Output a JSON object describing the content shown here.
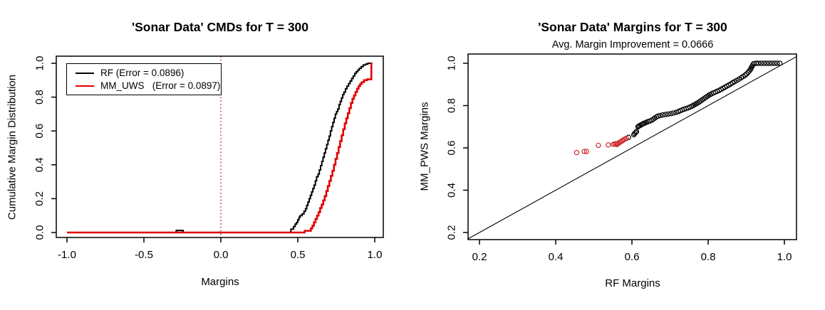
{
  "figure": {
    "background": "#ffffff",
    "description": "Two R base-graphics plots comparing RF and margin-maximizing ensemble margins on the Sonar dataset"
  },
  "chart_data": [
    {
      "type": "line",
      "title": "'Sonar Data' CMDs for T = 300",
      "xlabel": "Margins",
      "ylabel": "Cumulative Margin Distribution",
      "xlim": [
        -1.08,
        1.08
      ],
      "ylim": [
        -0.04,
        1.04
      ],
      "xtick_values": [
        -1.0,
        -0.5,
        0.0,
        0.5,
        1.0
      ],
      "xtick_labels": [
        "-1.0",
        "-0.5",
        "0.0",
        "0.5",
        "1.0"
      ],
      "ytick_values": [
        0.0,
        0.2,
        0.4,
        0.6,
        0.8,
        1.0
      ],
      "ytick_labels": [
        "0.0",
        "0.2",
        "0.4",
        "0.6",
        "0.8",
        "1.0"
      ],
      "grid": false,
      "reference_line": {
        "x": 0.0,
        "style": "dotted",
        "color": "#a03028",
        "width": 1.4
      },
      "legend": {
        "position": "top-left",
        "entries": [
          {
            "label": "RF (Error = 0.0896)",
            "color": "#000000"
          },
          {
            "label": "MM_UWS   (Error = 0.0897)",
            "color": "#e00000"
          }
        ]
      },
      "series": [
        {
          "name": "RF",
          "color": "#000000",
          "width": 2,
          "step": true,
          "points": [
            [
              -1.0,
              0.0
            ],
            [
              -0.29,
              0.012
            ],
            [
              -0.245,
              0.0
            ],
            [
              0.455,
              0.02
            ],
            [
              0.472,
              0.035
            ],
            [
              0.483,
              0.05
            ],
            [
              0.492,
              0.06
            ],
            [
              0.5,
              0.075
            ],
            [
              0.508,
              0.09
            ],
            [
              0.515,
              0.1
            ],
            [
              0.528,
              0.11
            ],
            [
              0.54,
              0.125
            ],
            [
              0.55,
              0.14
            ],
            [
              0.558,
              0.16
            ],
            [
              0.566,
              0.18
            ],
            [
              0.574,
              0.2
            ],
            [
              0.582,
              0.22
            ],
            [
              0.59,
              0.24
            ],
            [
              0.598,
              0.26
            ],
            [
              0.606,
              0.28
            ],
            [
              0.614,
              0.305
            ],
            [
              0.622,
              0.33
            ],
            [
              0.632,
              0.345
            ],
            [
              0.64,
              0.37
            ],
            [
              0.648,
              0.395
            ],
            [
              0.656,
              0.42
            ],
            [
              0.664,
              0.445
            ],
            [
              0.672,
              0.47
            ],
            [
              0.68,
              0.495
            ],
            [
              0.688,
              0.52
            ],
            [
              0.696,
              0.545
            ],
            [
              0.704,
              0.57
            ],
            [
              0.712,
              0.6
            ],
            [
              0.72,
              0.625
            ],
            [
              0.728,
              0.65
            ],
            [
              0.736,
              0.675
            ],
            [
              0.744,
              0.7
            ],
            [
              0.752,
              0.715
            ],
            [
              0.76,
              0.73
            ],
            [
              0.768,
              0.755
            ],
            [
              0.776,
              0.775
            ],
            [
              0.784,
              0.795
            ],
            [
              0.792,
              0.815
            ],
            [
              0.8,
              0.83
            ],
            [
              0.81,
              0.85
            ],
            [
              0.82,
              0.865
            ],
            [
              0.83,
              0.88
            ],
            [
              0.84,
              0.895
            ],
            [
              0.85,
              0.91
            ],
            [
              0.86,
              0.925
            ],
            [
              0.87,
              0.94
            ],
            [
              0.88,
              0.95
            ],
            [
              0.89,
              0.96
            ],
            [
              0.9,
              0.97
            ],
            [
              0.912,
              0.98
            ],
            [
              0.925,
              0.99
            ],
            [
              0.94,
              0.995
            ],
            [
              0.955,
              1.0
            ],
            [
              0.981,
              1.0
            ]
          ]
        },
        {
          "name": "MM_UWS",
          "color": "#e00000",
          "width": 2.6,
          "step": true,
          "points": [
            [
              -1.0,
              0.0
            ],
            [
              0.545,
              0.01
            ],
            [
              0.575,
              0.01
            ],
            [
              0.585,
              0.025
            ],
            [
              0.595,
              0.04
            ],
            [
              0.605,
              0.06
            ],
            [
              0.615,
              0.08
            ],
            [
              0.625,
              0.1
            ],
            [
              0.635,
              0.12
            ],
            [
              0.645,
              0.145
            ],
            [
              0.655,
              0.165
            ],
            [
              0.665,
              0.19
            ],
            [
              0.675,
              0.215
            ],
            [
              0.685,
              0.245
            ],
            [
              0.695,
              0.275
            ],
            [
              0.705,
              0.305
            ],
            [
              0.715,
              0.335
            ],
            [
              0.725,
              0.365
            ],
            [
              0.735,
              0.4
            ],
            [
              0.745,
              0.435
            ],
            [
              0.755,
              0.47
            ],
            [
              0.765,
              0.505
            ],
            [
              0.775,
              0.54
            ],
            [
              0.785,
              0.575
            ],
            [
              0.795,
              0.61
            ],
            [
              0.805,
              0.645
            ],
            [
              0.815,
              0.675
            ],
            [
              0.825,
              0.705
            ],
            [
              0.835,
              0.735
            ],
            [
              0.845,
              0.765
            ],
            [
              0.855,
              0.79
            ],
            [
              0.865,
              0.81
            ],
            [
              0.875,
              0.83
            ],
            [
              0.885,
              0.85
            ],
            [
              0.895,
              0.865
            ],
            [
              0.905,
              0.878
            ],
            [
              0.915,
              0.888
            ],
            [
              0.93,
              0.9
            ],
            [
              0.95,
              0.905
            ],
            [
              0.978,
              1.0
            ],
            [
              0.985,
              1.0
            ]
          ]
        }
      ]
    },
    {
      "type": "scatter",
      "title": "'Sonar Data' Margins for T = 300",
      "subtitle": "Avg. Margin Improvement = 0.0666",
      "xlabel": "RF Margins",
      "ylabel": "MM_PWS Margins",
      "xlim": [
        0.17,
        1.032
      ],
      "ylim": [
        0.166,
        1.044
      ],
      "xtick_values": [
        0.2,
        0.4,
        0.6,
        0.8,
        1.0
      ],
      "xtick_labels": [
        "0.2",
        "0.4",
        "0.6",
        "0.8",
        "1.0"
      ],
      "ytick_values": [
        0.2,
        0.4,
        0.6,
        0.8,
        1.0
      ],
      "ytick_labels": [
        "0.2",
        "0.4",
        "0.6",
        "0.8",
        "1.0"
      ],
      "grid": false,
      "identity_line": {
        "show": true,
        "color": "#000000",
        "width": 1.1
      },
      "marker": {
        "shape": "open-circle",
        "radius": 3.1,
        "stroke_width": 1.2
      },
      "series": [
        {
          "name": "black-points",
          "color": "#000000",
          "points": [
            [
              0.605,
              0.662
            ],
            [
              0.607,
              0.668
            ],
            [
              0.61,
              0.673
            ],
            [
              0.612,
              0.677
            ],
            [
              0.591,
              0.65
            ],
            [
              0.616,
              0.7
            ],
            [
              0.618,
              0.703
            ],
            [
              0.621,
              0.706
            ],
            [
              0.624,
              0.709
            ],
            [
              0.627,
              0.712
            ],
            [
              0.63,
              0.715
            ],
            [
              0.634,
              0.718
            ],
            [
              0.638,
              0.721
            ],
            [
              0.642,
              0.724
            ],
            [
              0.647,
              0.727
            ],
            [
              0.652,
              0.731
            ],
            [
              0.656,
              0.736
            ],
            [
              0.66,
              0.741
            ],
            [
              0.664,
              0.746
            ],
            [
              0.668,
              0.75
            ],
            [
              0.674,
              0.753
            ],
            [
              0.681,
              0.756
            ],
            [
              0.688,
              0.758
            ],
            [
              0.695,
              0.76
            ],
            [
              0.702,
              0.762
            ],
            [
              0.709,
              0.765
            ],
            [
              0.716,
              0.768
            ],
            [
              0.722,
              0.772
            ],
            [
              0.727,
              0.776
            ],
            [
              0.732,
              0.78
            ],
            [
              0.737,
              0.783
            ],
            [
              0.742,
              0.786
            ],
            [
              0.747,
              0.789
            ],
            [
              0.752,
              0.793
            ],
            [
              0.757,
              0.797
            ],
            [
              0.761,
              0.801
            ],
            [
              0.765,
              0.805
            ],
            [
              0.769,
              0.809
            ],
            [
              0.773,
              0.813
            ],
            [
              0.777,
              0.818
            ],
            [
              0.781,
              0.823
            ],
            [
              0.785,
              0.828
            ],
            [
              0.789,
              0.833
            ],
            [
              0.793,
              0.838
            ],
            [
              0.797,
              0.843
            ],
            [
              0.801,
              0.848
            ],
            [
              0.805,
              0.852
            ],
            [
              0.809,
              0.856
            ],
            [
              0.814,
              0.86
            ],
            [
              0.819,
              0.864
            ],
            [
              0.824,
              0.868
            ],
            [
              0.829,
              0.872
            ],
            [
              0.834,
              0.877
            ],
            [
              0.839,
              0.882
            ],
            [
              0.844,
              0.887
            ],
            [
              0.849,
              0.892
            ],
            [
              0.854,
              0.897
            ],
            [
              0.859,
              0.902
            ],
            [
              0.864,
              0.908
            ],
            [
              0.869,
              0.913
            ],
            [
              0.875,
              0.919
            ],
            [
              0.881,
              0.925
            ],
            [
              0.887,
              0.932
            ],
            [
              0.892,
              0.938
            ],
            [
              0.897,
              0.944
            ],
            [
              0.901,
              0.95
            ],
            [
              0.905,
              0.957
            ],
            [
              0.908,
              0.964
            ],
            [
              0.911,
              0.971
            ],
            [
              0.913,
              0.978
            ],
            [
              0.915,
              0.985
            ],
            [
              0.917,
              0.992
            ],
            [
              0.92,
              0.999
            ],
            [
              0.926,
              1.0
            ],
            [
              0.932,
              1.0
            ],
            [
              0.939,
              1.0
            ],
            [
              0.946,
              1.0
            ],
            [
              0.953,
              1.0
            ],
            [
              0.96,
              1.0
            ],
            [
              0.967,
              1.0
            ],
            [
              0.974,
              1.0
            ],
            [
              0.981,
              1.0
            ],
            [
              0.988,
              1.0
            ]
          ]
        },
        {
          "name": "red-points",
          "color": "#cc2a2a",
          "points": [
            [
              0.455,
              0.578
            ],
            [
              0.475,
              0.583
            ],
            [
              0.481,
              0.583
            ],
            [
              0.512,
              0.612
            ],
            [
              0.538,
              0.614
            ],
            [
              0.551,
              0.617
            ],
            [
              0.555,
              0.618
            ],
            [
              0.558,
              0.62
            ],
            [
              0.561,
              0.616
            ],
            [
              0.563,
              0.62
            ],
            [
              0.566,
              0.624
            ],
            [
              0.569,
              0.627
            ],
            [
              0.572,
              0.631
            ],
            [
              0.575,
              0.634
            ],
            [
              0.578,
              0.638
            ],
            [
              0.581,
              0.641
            ],
            [
              0.585,
              0.645
            ]
          ]
        }
      ]
    }
  ]
}
